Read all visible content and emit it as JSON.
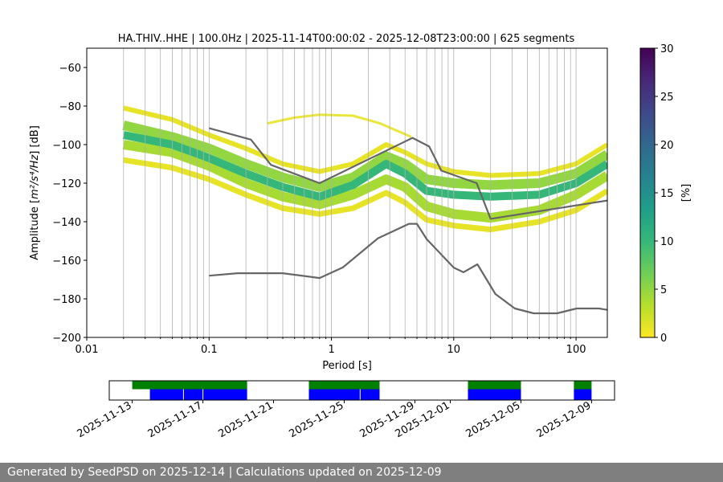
{
  "chart_data": {
    "type": "heatmap",
    "title": "HA.THIV..HHE | 100.0Hz | 2025-11-14T00:00:02 - 2025-12-08T23:00:00 | 625 segments",
    "xlabel": "Period [s]",
    "ylabel_prefix": "Amplitude [",
    "ylabel_unit": "m²/s⁴/Hz",
    "ylabel_suffix": "] [dB]",
    "x_scale": "log",
    "xlim": [
      0.01,
      180
    ],
    "ylim": [
      -200,
      -50
    ],
    "x_tick_labels": [
      "0.01",
      "0.1",
      "1",
      "10",
      "100"
    ],
    "x_tick_values": [
      0.01,
      0.1,
      1,
      10,
      100
    ],
    "y_tick_labels": [
      "−200",
      "−180",
      "−160",
      "−140",
      "−120",
      "−100",
      "−80",
      "−60"
    ],
    "y_tick_values": [
      -200,
      -180,
      -160,
      -140,
      -120,
      -100,
      -80,
      -60
    ],
    "grid_x_periods": [
      0.02,
      0.03,
      0.04,
      0.05,
      0.06,
      0.07,
      0.08,
      0.09,
      0.1,
      0.2,
      0.3,
      0.4,
      0.5,
      0.6,
      0.7,
      0.8,
      0.9,
      1,
      2,
      3,
      4,
      5,
      6,
      7,
      8,
      9,
      10,
      20,
      30,
      40,
      50,
      60,
      70,
      80,
      90,
      100
    ],
    "colorbar": {
      "label": "[%]",
      "range": [
        0,
        30
      ],
      "tick_labels": [
        "0",
        "5",
        "10",
        "15",
        "20",
        "25",
        "30"
      ],
      "tick_values": [
        0,
        5,
        10,
        15,
        20,
        25,
        30
      ],
      "colors": [
        "#fde725",
        "#b5de2b",
        "#6ece58",
        "#35b779",
        "#1f9e89",
        "#26828e",
        "#31688e",
        "#3e4989",
        "#482878",
        "#440154"
      ]
    },
    "series": [
      {
        "name": "NHNM",
        "color": "#666666",
        "points": [
          [
            0.1,
            -91.5
          ],
          [
            0.22,
            -97.4
          ],
          [
            0.32,
            -110.5
          ],
          [
            0.8,
            -120
          ],
          [
            4.6,
            -96.5
          ],
          [
            6.3,
            -101
          ],
          [
            7.9,
            -113.5
          ],
          [
            15.4,
            -120
          ],
          [
            20,
            -138.5
          ],
          [
            180,
            -129
          ]
        ]
      },
      {
        "name": "NLNM",
        "color": "#666666",
        "points": [
          [
            0.1,
            -168
          ],
          [
            0.17,
            -166.7
          ],
          [
            0.4,
            -166.7
          ],
          [
            0.8,
            -169.2
          ],
          [
            1.24,
            -163.7
          ],
          [
            2.4,
            -148.6
          ],
          [
            4.3,
            -141.1
          ],
          [
            5,
            -141.1
          ],
          [
            6,
            -149
          ],
          [
            10,
            -163.8
          ],
          [
            12,
            -166.2
          ],
          [
            15.6,
            -162.1
          ],
          [
            21.9,
            -177.5
          ],
          [
            31.6,
            -185
          ],
          [
            45,
            -187.5
          ],
          [
            70,
            -187.5
          ],
          [
            101,
            -185
          ],
          [
            154,
            -185
          ],
          [
            180,
            -185.7
          ]
        ]
      }
    ],
    "density_bands": [
      {
        "name": "core",
        "density_percent": 10,
        "points": [
          [
            0.02,
            -95
          ],
          [
            0.05,
            -100
          ],
          [
            0.1,
            -107
          ],
          [
            0.2,
            -115
          ],
          [
            0.4,
            -122
          ],
          [
            0.8,
            -127
          ],
          [
            1.5,
            -121
          ],
          [
            2.8,
            -110
          ],
          [
            4,
            -115
          ],
          [
            6,
            -124
          ],
          [
            10,
            -126
          ],
          [
            20,
            -127
          ],
          [
            50,
            -126
          ],
          [
            100,
            -120
          ],
          [
            180,
            -110
          ]
        ]
      },
      {
        "name": "upper",
        "density_percent": 5,
        "points": [
          [
            0.02,
            -90
          ],
          [
            0.05,
            -96
          ],
          [
            0.1,
            -102
          ],
          [
            0.2,
            -110
          ],
          [
            0.4,
            -117
          ],
          [
            0.8,
            -122
          ],
          [
            1.5,
            -117
          ],
          [
            2.8,
            -106
          ],
          [
            4,
            -110
          ],
          [
            6,
            -118
          ],
          [
            10,
            -120
          ],
          [
            20,
            -121
          ],
          [
            50,
            -120
          ],
          [
            100,
            -115
          ],
          [
            180,
            -105
          ]
        ]
      },
      {
        "name": "lower",
        "density_percent": 4,
        "points": [
          [
            0.02,
            -100
          ],
          [
            0.05,
            -104
          ],
          [
            0.1,
            -111
          ],
          [
            0.2,
            -120
          ],
          [
            0.4,
            -127
          ],
          [
            0.8,
            -131
          ],
          [
            1.5,
            -126
          ],
          [
            2.8,
            -118
          ],
          [
            4,
            -122
          ],
          [
            6,
            -132
          ],
          [
            10,
            -136
          ],
          [
            20,
            -138
          ],
          [
            50,
            -134
          ],
          [
            100,
            -126
          ],
          [
            180,
            -116
          ]
        ]
      },
      {
        "name": "outer-upper",
        "density_percent": 1,
        "points": [
          [
            0.02,
            -81
          ],
          [
            0.05,
            -87
          ],
          [
            0.1,
            -95
          ],
          [
            0.2,
            -102
          ],
          [
            0.4,
            -110
          ],
          [
            0.8,
            -114
          ],
          [
            1.5,
            -110
          ],
          [
            2.8,
            -100
          ],
          [
            4,
            -104
          ],
          [
            6,
            -110
          ],
          [
            10,
            -114
          ],
          [
            20,
            -116
          ],
          [
            50,
            -115
          ],
          [
            100,
            -110
          ],
          [
            180,
            -100
          ]
        ]
      },
      {
        "name": "outer-lower",
        "density_percent": 1,
        "points": [
          [
            0.02,
            -108
          ],
          [
            0.05,
            -112
          ],
          [
            0.1,
            -118
          ],
          [
            0.2,
            -126
          ],
          [
            0.4,
            -133
          ],
          [
            0.8,
            -136
          ],
          [
            1.5,
            -133
          ],
          [
            2.8,
            -125
          ],
          [
            4,
            -130
          ],
          [
            6,
            -139
          ],
          [
            10,
            -142
          ],
          [
            20,
            -144
          ],
          [
            50,
            -140
          ],
          [
            100,
            -134
          ],
          [
            180,
            -124
          ]
        ]
      },
      {
        "name": "upper-tail",
        "density_percent": 1,
        "points": [
          [
            0.3,
            -89
          ],
          [
            0.5,
            -86
          ],
          [
            0.8,
            -84.5
          ],
          [
            1.5,
            -85
          ],
          [
            2.5,
            -89
          ],
          [
            3.5,
            -93
          ],
          [
            4.5,
            -96
          ]
        ]
      }
    ],
    "availability": {
      "date_tick_labels": [
        "2025-11-13",
        "2025-11-17",
        "2025-11-21",
        "2025-11-25",
        "2025-11-29",
        "2025-12-01",
        "2025-12-05",
        "2025-12-09"
      ],
      "date_tick_days": [
        0,
        4,
        8,
        12,
        16,
        18,
        22,
        26
      ],
      "range_days": [
        -1.3,
        27.3
      ],
      "colors": {
        "data": "#008000",
        "computed": "#0000ff"
      },
      "data_segments": [
        [
          0,
          6.5
        ],
        [
          10,
          14
        ],
        [
          19,
          22
        ],
        [
          25,
          26
        ]
      ],
      "computed_segments": [
        [
          1,
          6.5
        ],
        [
          10,
          14
        ],
        [
          19,
          22
        ],
        [
          25,
          26
        ]
      ]
    }
  },
  "footer": {
    "text": "Generated by SeedPSD on 2025-12-14 | Calculations updated on 2025-12-09"
  }
}
